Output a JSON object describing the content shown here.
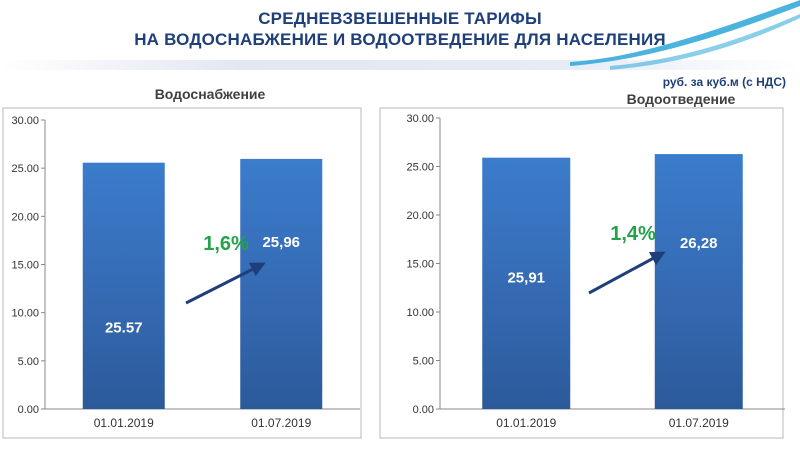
{
  "header": {
    "title_line1": "СРЕДНЕВЗВЕШЕННЫЕ ТАРИФЫ",
    "title_line2": "НА ВОДОСНАБЖЕНИЕ И ВОДООТВЕДЕНИЕ ДЛЯ НАСЕЛЕНИЯ",
    "unit_note": "руб. за куб.м (с НДС)",
    "accent_color": "#1f3f7a",
    "wave_color": "#2aa7d8"
  },
  "chart_data": [
    {
      "type": "bar",
      "title": "Водоснабжение",
      "categories": [
        "01.01.2019",
        "01.07.2019"
      ],
      "values": [
        25.57,
        25.96
      ],
      "value_labels": [
        "25.57",
        "25,96"
      ],
      "ylim": [
        0,
        30
      ],
      "yticks": [
        "0.00",
        "5.00",
        "10.00",
        "15.00",
        "20.00",
        "25.00",
        "30.00"
      ],
      "grid": false,
      "legend": "none",
      "bar_color": "#3570c0",
      "annotation": {
        "text": "1,6%",
        "color": "#22a34a",
        "arrow_color": "#1f3f7a"
      }
    },
    {
      "type": "bar",
      "title": "Водоотведение",
      "categories": [
        "01.01.2019",
        "01.07.2019"
      ],
      "values": [
        25.91,
        26.28
      ],
      "value_labels": [
        "25,91",
        "26,28"
      ],
      "ylim": [
        0,
        30
      ],
      "yticks": [
        "0.00",
        "5.00",
        "10.00",
        "15.00",
        "20.00",
        "25.00",
        "30.00"
      ],
      "grid": false,
      "legend": "none",
      "bar_color": "#3570c0",
      "annotation": {
        "text": "1,4%",
        "color": "#22a34a",
        "arrow_color": "#1f3f7a"
      }
    }
  ]
}
